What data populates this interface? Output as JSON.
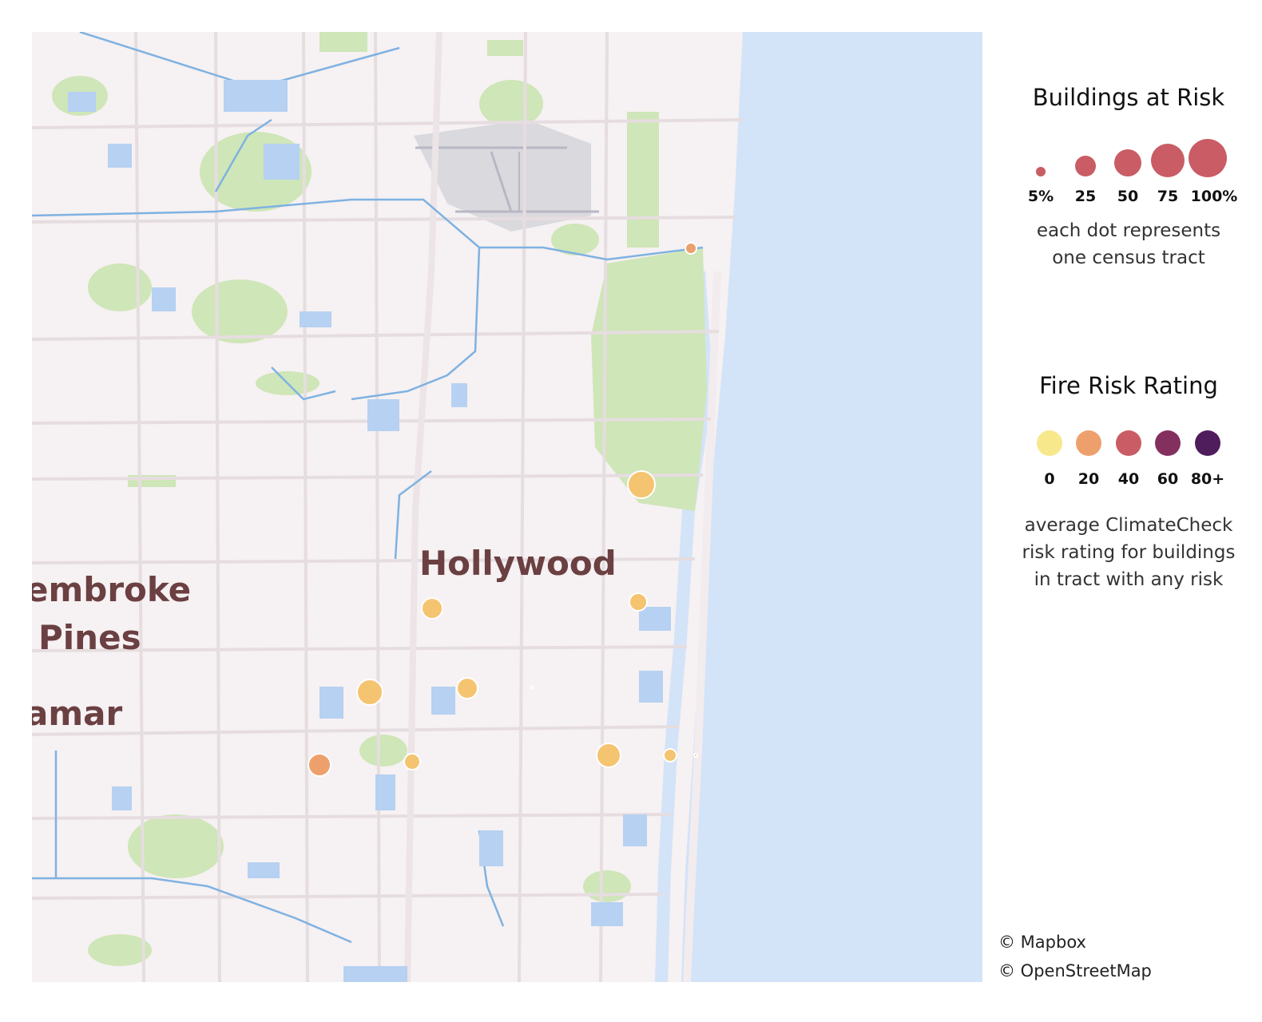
{
  "map": {
    "labels": {
      "hollywood": "Hollywood",
      "pembroke_line1": "embroke",
      "pembroke_line2": "Pines",
      "miramar": "amar"
    },
    "colors": {
      "land": "#f6f1f2",
      "water": "#d3e3f8",
      "water_line": "#6fa7de",
      "park": "#cfe6b8",
      "road": "#e9e2e4",
      "airport": "#d9d9de"
    }
  },
  "legend": {
    "size": {
      "title": "Buildings at Risk",
      "ticks": [
        "5%",
        "25",
        "50",
        "75",
        "100%"
      ],
      "note": "each dot represents\none census tract"
    },
    "color": {
      "title": "Fire Risk Rating",
      "ticks": [
        "0",
        "20",
        "40",
        "60",
        "80+"
      ],
      "swatches": [
        "#f7e88b",
        "#eea06c",
        "#c95c64",
        "#84305f",
        "#4f1d5c"
      ],
      "note": "average ClimateCheck\nrisk rating for buildings\nin tract with any risk"
    }
  },
  "attribution": {
    "mapbox": "© Mapbox",
    "osm": "© OpenStreetMap"
  }
}
